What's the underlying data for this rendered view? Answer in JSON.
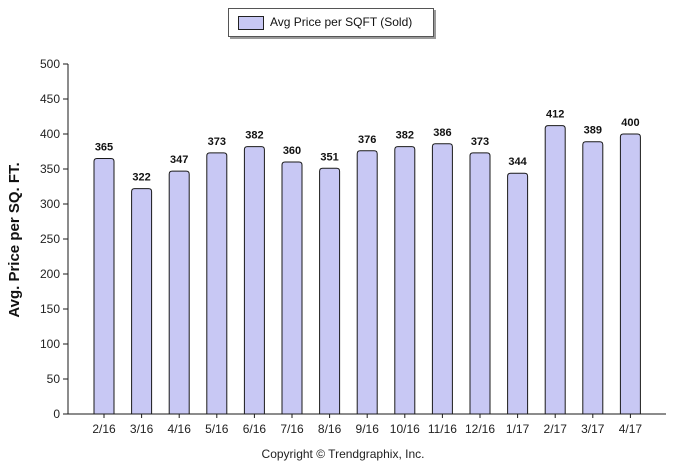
{
  "legend": {
    "label": "Avg Price per SQFT (Sold)"
  },
  "footer": {
    "text": "Copyright © Trendgraphix, Inc."
  },
  "colors": {
    "bar_fill": "#c8c8f4",
    "bar_stroke": "#1a1a1a",
    "axis": "#1a1a1a"
  },
  "chart_data": {
    "type": "bar",
    "categories": [
      "2/16",
      "3/16",
      "4/16",
      "5/16",
      "6/16",
      "7/16",
      "8/16",
      "9/16",
      "10/16",
      "11/16",
      "12/16",
      "1/17",
      "2/17",
      "3/17",
      "4/17"
    ],
    "values": [
      365,
      322,
      347,
      373,
      382,
      360,
      351,
      376,
      382,
      386,
      373,
      344,
      412,
      389,
      400
    ],
    "ylabel": "Avg. Price per SQ. FT.",
    "ylim": [
      0,
      500
    ],
    "yticks": [
      0,
      50,
      100,
      150,
      200,
      250,
      300,
      350,
      400,
      450,
      500
    ],
    "grid": false,
    "legend_position": "top-center",
    "data_labels": true
  }
}
